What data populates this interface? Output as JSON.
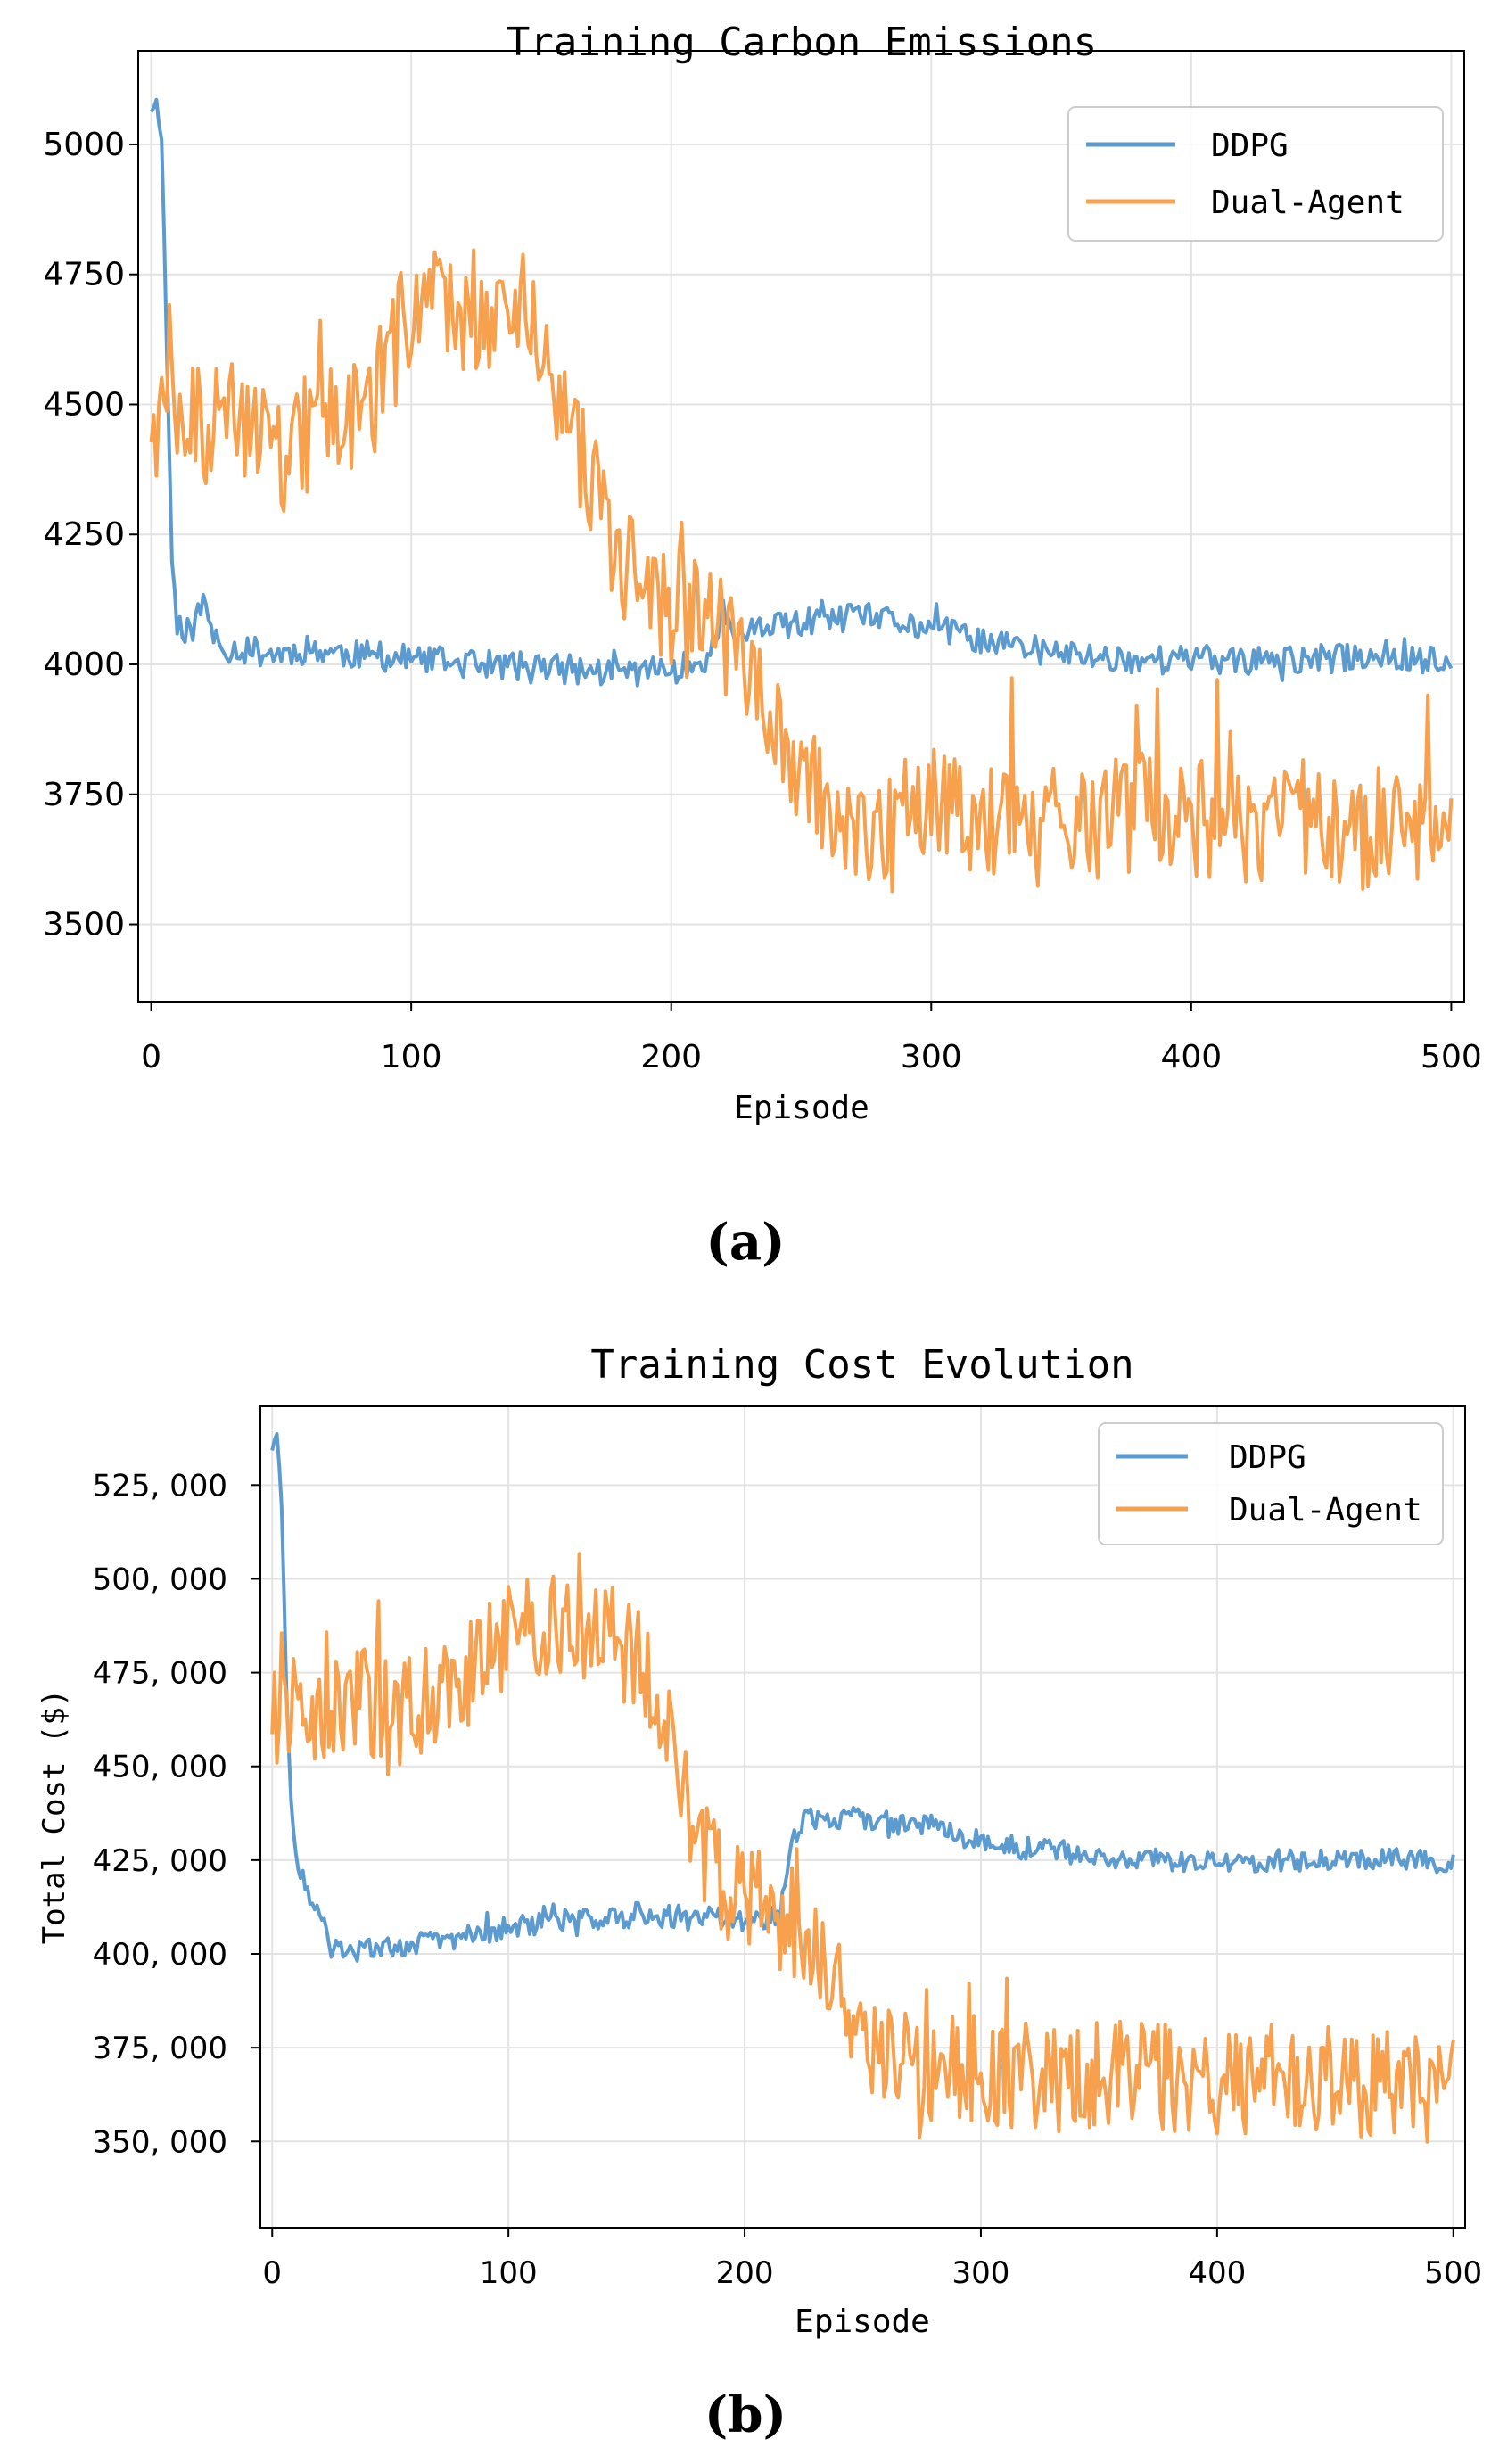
{
  "chart_data": [
    {
      "type": "line",
      "title": "Training Carbon Emissions",
      "xlabel": "Episode",
      "ylabel": "",
      "xlim": [
        -5,
        505
      ],
      "ylim": [
        3350,
        5180
      ],
      "xticks": [
        0,
        100,
        200,
        300,
        400,
        500
      ],
      "yticks": [
        3500,
        3750,
        4000,
        4250,
        4500,
        4750,
        5000
      ],
      "ytick_labels": [
        "3500",
        "3750",
        "4000",
        "4250",
        "4500",
        "4750",
        "5000"
      ],
      "grid": true,
      "legend_position": "top-right",
      "caption": "(a)",
      "series": [
        {
          "name": "DDPG",
          "color": "#5b9bcf",
          "x": [
            0,
            2,
            4,
            6,
            8,
            10,
            15,
            20,
            25,
            30,
            40,
            50,
            60,
            75,
            100,
            125,
            150,
            175,
            200,
            210,
            215,
            220,
            225,
            230,
            250,
            275,
            300,
            325,
            350,
            375,
            400,
            425,
            450,
            475,
            500
          ],
          "values": [
            5070,
            5080,
            5020,
            4600,
            4200,
            4080,
            4060,
            4120,
            4040,
            4030,
            4025,
            4020,
            4030,
            4020,
            4010,
            4000,
            3995,
            3985,
            3990,
            4000,
            4020,
            4100,
            4050,
            4060,
            4080,
            4090,
            4070,
            4040,
            4020,
            4010,
            4010,
            4005,
            4010,
            4020,
            4000
          ]
        },
        {
          "name": "Dual-Agent",
          "color": "#f7a04e",
          "x": [
            0,
            10,
            25,
            40,
            50,
            60,
            70,
            80,
            90,
            100,
            110,
            120,
            130,
            140,
            150,
            160,
            170,
            180,
            190,
            200,
            210,
            220,
            230,
            240,
            250,
            260,
            270,
            280,
            290,
            300,
            320,
            340,
            360,
            380,
            400,
            420,
            440,
            460,
            480,
            500
          ],
          "values": [
            4480,
            4460,
            4450,
            4470,
            4400,
            4450,
            4500,
            4480,
            4550,
            4700,
            4720,
            4680,
            4690,
            4700,
            4620,
            4450,
            4350,
            4200,
            4150,
            4100,
            4080,
            4050,
            3950,
            3870,
            3800,
            3740,
            3680,
            3650,
            3700,
            3720,
            3710,
            3690,
            3700,
            3710,
            3700,
            3690,
            3700,
            3680,
            3700,
            3690
          ]
        }
      ]
    },
    {
      "type": "line",
      "title": "Training Cost Evolution",
      "xlabel": "Episode",
      "ylabel": "Total Cost ($)",
      "xlim": [
        -5,
        505
      ],
      "ylim": [
        327000,
        546000
      ],
      "xticks": [
        0,
        100,
        200,
        300,
        400,
        500
      ],
      "yticks": [
        350000,
        375000,
        400000,
        425000,
        450000,
        475000,
        500000,
        525000
      ],
      "ytick_labels": [
        "350, 000",
        "375, 000",
        "400, 000",
        "425, 000",
        "450, 000",
        "475, 000",
        "500, 000",
        "525, 000"
      ],
      "grid": true,
      "legend_position": "top-right",
      "caption": "(b)",
      "series": [
        {
          "name": "DDPG",
          "color": "#5b9bcf",
          "x": [
            0,
            2,
            4,
            6,
            8,
            10,
            15,
            20,
            25,
            30,
            40,
            50,
            75,
            100,
            125,
            150,
            175,
            200,
            215,
            220,
            225,
            250,
            275,
            300,
            325,
            350,
            375,
            400,
            425,
            450,
            475,
            500
          ],
          "values": [
            535000,
            538000,
            520000,
            470000,
            440000,
            425000,
            415000,
            410000,
            402000,
            400000,
            401000,
            402000,
            404000,
            407000,
            409000,
            410000,
            410000,
            409000,
            410000,
            430000,
            436000,
            436000,
            435000,
            430000,
            428000,
            426000,
            425000,
            424000,
            425000,
            425000,
            426000,
            424000
          ]
        },
        {
          "name": "Dual-Agent",
          "color": "#f7a04e",
          "x": [
            0,
            10,
            25,
            40,
            50,
            60,
            70,
            80,
            90,
            100,
            110,
            120,
            130,
            140,
            150,
            160,
            170,
            180,
            190,
            200,
            210,
            220,
            230,
            240,
            250,
            260,
            270,
            280,
            290,
            300,
            320,
            340,
            360,
            380,
            400,
            420,
            440,
            460,
            480,
            500
          ],
          "values": [
            465000,
            466000,
            466000,
            468000,
            462000,
            465000,
            470000,
            472000,
            478000,
            485000,
            488000,
            486000,
            487000,
            485000,
            480000,
            470000,
            455000,
            430000,
            420000,
            415000,
            413000,
            408000,
            400000,
            388000,
            380000,
            375000,
            372000,
            370000,
            370000,
            369000,
            368000,
            367000,
            367000,
            367000,
            366000,
            366000,
            366000,
            366000,
            365000,
            364000
          ]
        }
      ]
    }
  ]
}
